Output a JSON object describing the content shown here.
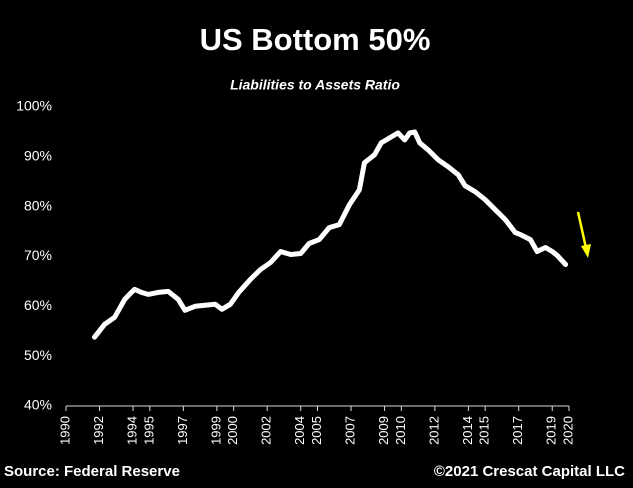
{
  "chart_data": {
    "type": "line",
    "title": "US Bottom 50%",
    "subtitle": "Liabilities to Assets Ratio",
    "source": "Source: Federal Reserve",
    "credit": "©2021 Crescat Capital LLC",
    "x": [
      1991.7,
      1992.3,
      1992.9,
      1993.5,
      1993.9,
      1994.1,
      1994.5,
      1994.9,
      1995.5,
      1996.1,
      1996.7,
      1997.1,
      1997.7,
      1998.3,
      1998.9,
      1999.3,
      1999.8,
      2000.3,
      2001.0,
      2001.6,
      2002.2,
      2002.8,
      2003.4,
      2004.0,
      2004.5,
      2005.1,
      2005.7,
      2006.3,
      2006.9,
      2007.5,
      2007.8,
      2008.4,
      2008.8,
      2009.3,
      2009.8,
      2010.2,
      2010.5,
      2010.8,
      2011.1,
      2011.6,
      2012.2,
      2012.8,
      2013.4,
      2013.8,
      2014.4,
      2015.0,
      2015.6,
      2016.2,
      2016.8,
      2017.1,
      2017.7,
      2018.1,
      2018.6,
      2019.0,
      2019.3,
      2019.8
    ],
    "series": [
      {
        "name": "Liabilities to Assets Ratio",
        "color": "#ffffff",
        "values": [
          53.8,
          56.4,
          57.8,
          61.4,
          62.8,
          63.4,
          62.8,
          62.4,
          62.8,
          63.0,
          61.4,
          59.2,
          60.0,
          60.2,
          60.4,
          59.4,
          60.4,
          62.8,
          65.4,
          67.4,
          68.8,
          71.0,
          70.4,
          70.6,
          72.6,
          73.4,
          75.8,
          76.4,
          80.4,
          83.4,
          88.8,
          90.4,
          92.8,
          93.8,
          94.8,
          93.4,
          94.8,
          95.0,
          92.8,
          91.4,
          89.4,
          88.0,
          86.4,
          84.2,
          83.0,
          81.4,
          79.4,
          77.4,
          74.8,
          74.4,
          73.4,
          71.0,
          71.8,
          71.0,
          70.2,
          68.4
        ]
      }
    ],
    "xlim": [
      1990,
      2020
    ],
    "xticks": [
      1990,
      1992,
      1994,
      1995,
      1997,
      1999,
      2000,
      2002,
      2004,
      2005,
      2007,
      2009,
      2010,
      2012,
      2014,
      2015,
      2017,
      2019,
      2020
    ],
    "ylim": [
      40,
      100
    ],
    "yticks": [
      {
        "value": 40,
        "label": "40%"
      },
      {
        "value": 50,
        "label": "50%"
      },
      {
        "value": 60,
        "label": "60%"
      },
      {
        "value": 70,
        "label": "70%"
      },
      {
        "value": 80,
        "label": "80%"
      },
      {
        "value": 90,
        "label": "90%"
      },
      {
        "value": 100,
        "label": "100%"
      }
    ],
    "grid": false
  }
}
